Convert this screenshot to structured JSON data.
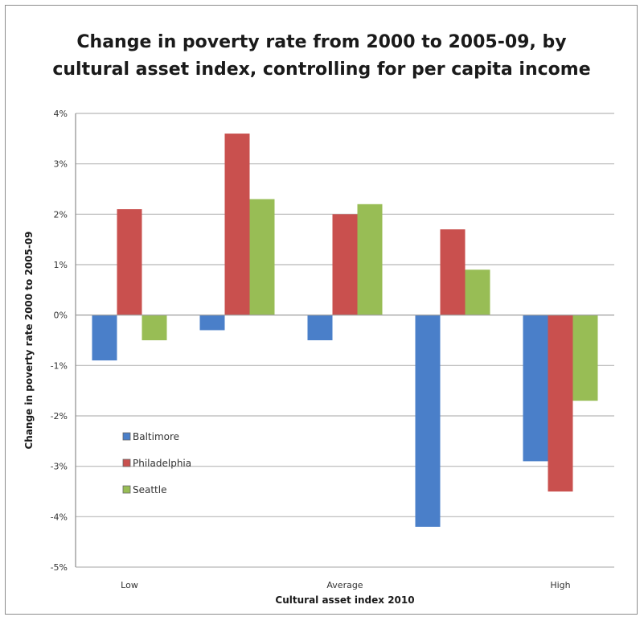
{
  "chart_data": {
    "type": "bar",
    "title": "Change in poverty rate from 2000 to 2005-09, by cultural asset index, controlling for per capita income",
    "xlabel": "Cultural asset index 2010",
    "ylabel": "Change in poverty rate 2000 to 2005-09",
    "categories": [
      "Low",
      "",
      "Average",
      "",
      "High"
    ],
    "series": [
      {
        "name": "Baltimore",
        "color": "#4a7fc9",
        "values": [
          -0.9,
          -0.3,
          -0.5,
          -4.2,
          -2.9
        ]
      },
      {
        "name": "Philadelphia",
        "color": "#c9504e",
        "values": [
          2.1,
          3.6,
          2.0,
          1.7,
          -3.5
        ]
      },
      {
        "name": "Seattle",
        "color": "#98bd55",
        "values": [
          -0.5,
          2.3,
          2.2,
          0.9,
          -1.7
        ]
      }
    ],
    "ylim": [
      -5,
      4
    ],
    "yticks": [
      -5,
      -4,
      -3,
      -2,
      -1,
      0,
      1,
      2,
      3,
      4
    ],
    "ytick_labels": [
      "-5%",
      "-4%",
      "-3%",
      "-2%",
      "-1%",
      "0%",
      "1%",
      "2%",
      "3%",
      "4%"
    ],
    "grid": true,
    "legend_position": "left, inside plot"
  }
}
